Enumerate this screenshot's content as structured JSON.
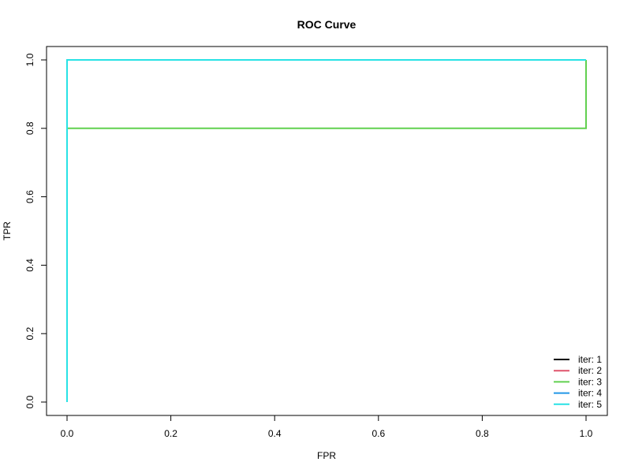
{
  "chart_data": {
    "type": "line",
    "title": "ROC Curve",
    "xlabel": "FPR",
    "ylabel": "TPR",
    "xlim": [
      0,
      1
    ],
    "ylim": [
      0,
      1
    ],
    "x_ticks": [
      0.0,
      0.2,
      0.4,
      0.6,
      0.8,
      1.0
    ],
    "y_ticks": [
      0.0,
      0.2,
      0.4,
      0.6,
      0.8,
      1.0
    ],
    "x_tick_labels": [
      "0.0",
      "0.2",
      "0.4",
      "0.6",
      "0.8",
      "1.0"
    ],
    "y_tick_labels": [
      "0.0",
      "0.2",
      "0.4",
      "0.6",
      "0.8",
      "1.0"
    ],
    "grid": false,
    "legend": {
      "position": "bottom-right"
    },
    "series": [
      {
        "name": "iter: 1",
        "color": "#000000",
        "x": [
          0,
          0,
          0,
          1
        ],
        "y": [
          0,
          1,
          1,
          1
        ]
      },
      {
        "name": "iter: 2",
        "color": "#DF536B",
        "x": [
          0,
          0,
          0,
          1
        ],
        "y": [
          0,
          1,
          1,
          1
        ]
      },
      {
        "name": "iter: 3",
        "color": "#61D04F",
        "x": [
          0,
          0,
          1,
          1
        ],
        "y": [
          0,
          0.8,
          0.8,
          1
        ]
      },
      {
        "name": "iter: 4",
        "color": "#2297E6",
        "x": [
          0,
          0,
          0,
          1
        ],
        "y": [
          0,
          1,
          1,
          1
        ]
      },
      {
        "name": "iter: 5",
        "color": "#28E2E5",
        "x": [
          0,
          0,
          1,
          1
        ],
        "y": [
          0,
          1,
          1,
          1
        ]
      }
    ]
  }
}
